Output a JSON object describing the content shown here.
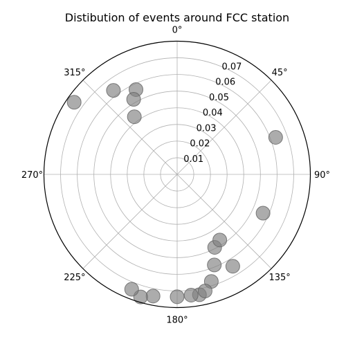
{
  "chart_data": {
    "type": "scatter",
    "subtype": "polar",
    "title": "Distibution of events around FCC station",
    "theta_direction": "clockwise",
    "theta_zero_location": "top",
    "theta_ticks": [
      "0°",
      "45°",
      "90°",
      "135°",
      "180°",
      "225°",
      "270°",
      "315°"
    ],
    "r_ticks": [
      "0.01",
      "0.02",
      "0.03",
      "0.04",
      "0.05",
      "0.06",
      "0.07"
    ],
    "rlim": [
      0,
      0.08
    ],
    "grid": true,
    "marker_color": "#808080",
    "marker_alpha": 0.65,
    "points": [
      {
        "theta": 305.0,
        "r": 0.0755
      },
      {
        "theta": 322.8,
        "r": 0.0633
      },
      {
        "theta": 334.1,
        "r": 0.0566
      },
      {
        "theta": 329.9,
        "r": 0.0521
      },
      {
        "theta": 323.4,
        "r": 0.0431
      },
      {
        "theta": 69.4,
        "r": 0.0632
      },
      {
        "theta": 114.3,
        "r": 0.0566
      },
      {
        "theta": 152.8,
        "r": 0.0493
      },
      {
        "theta": 147.0,
        "r": 0.047
      },
      {
        "theta": 157.7,
        "r": 0.0588
      },
      {
        "theta": 148.8,
        "r": 0.0645
      },
      {
        "theta": 162.3,
        "r": 0.0675
      },
      {
        "theta": 169.5,
        "r": 0.0735
      },
      {
        "theta": 173.4,
        "r": 0.073
      },
      {
        "theta": 166.5,
        "r": 0.072
      },
      {
        "theta": 180.0,
        "r": 0.0735
      },
      {
        "theta": 191.2,
        "r": 0.0745
      },
      {
        "theta": 196.6,
        "r": 0.0768
      },
      {
        "theta": 201.6,
        "r": 0.0742
      }
    ]
  }
}
